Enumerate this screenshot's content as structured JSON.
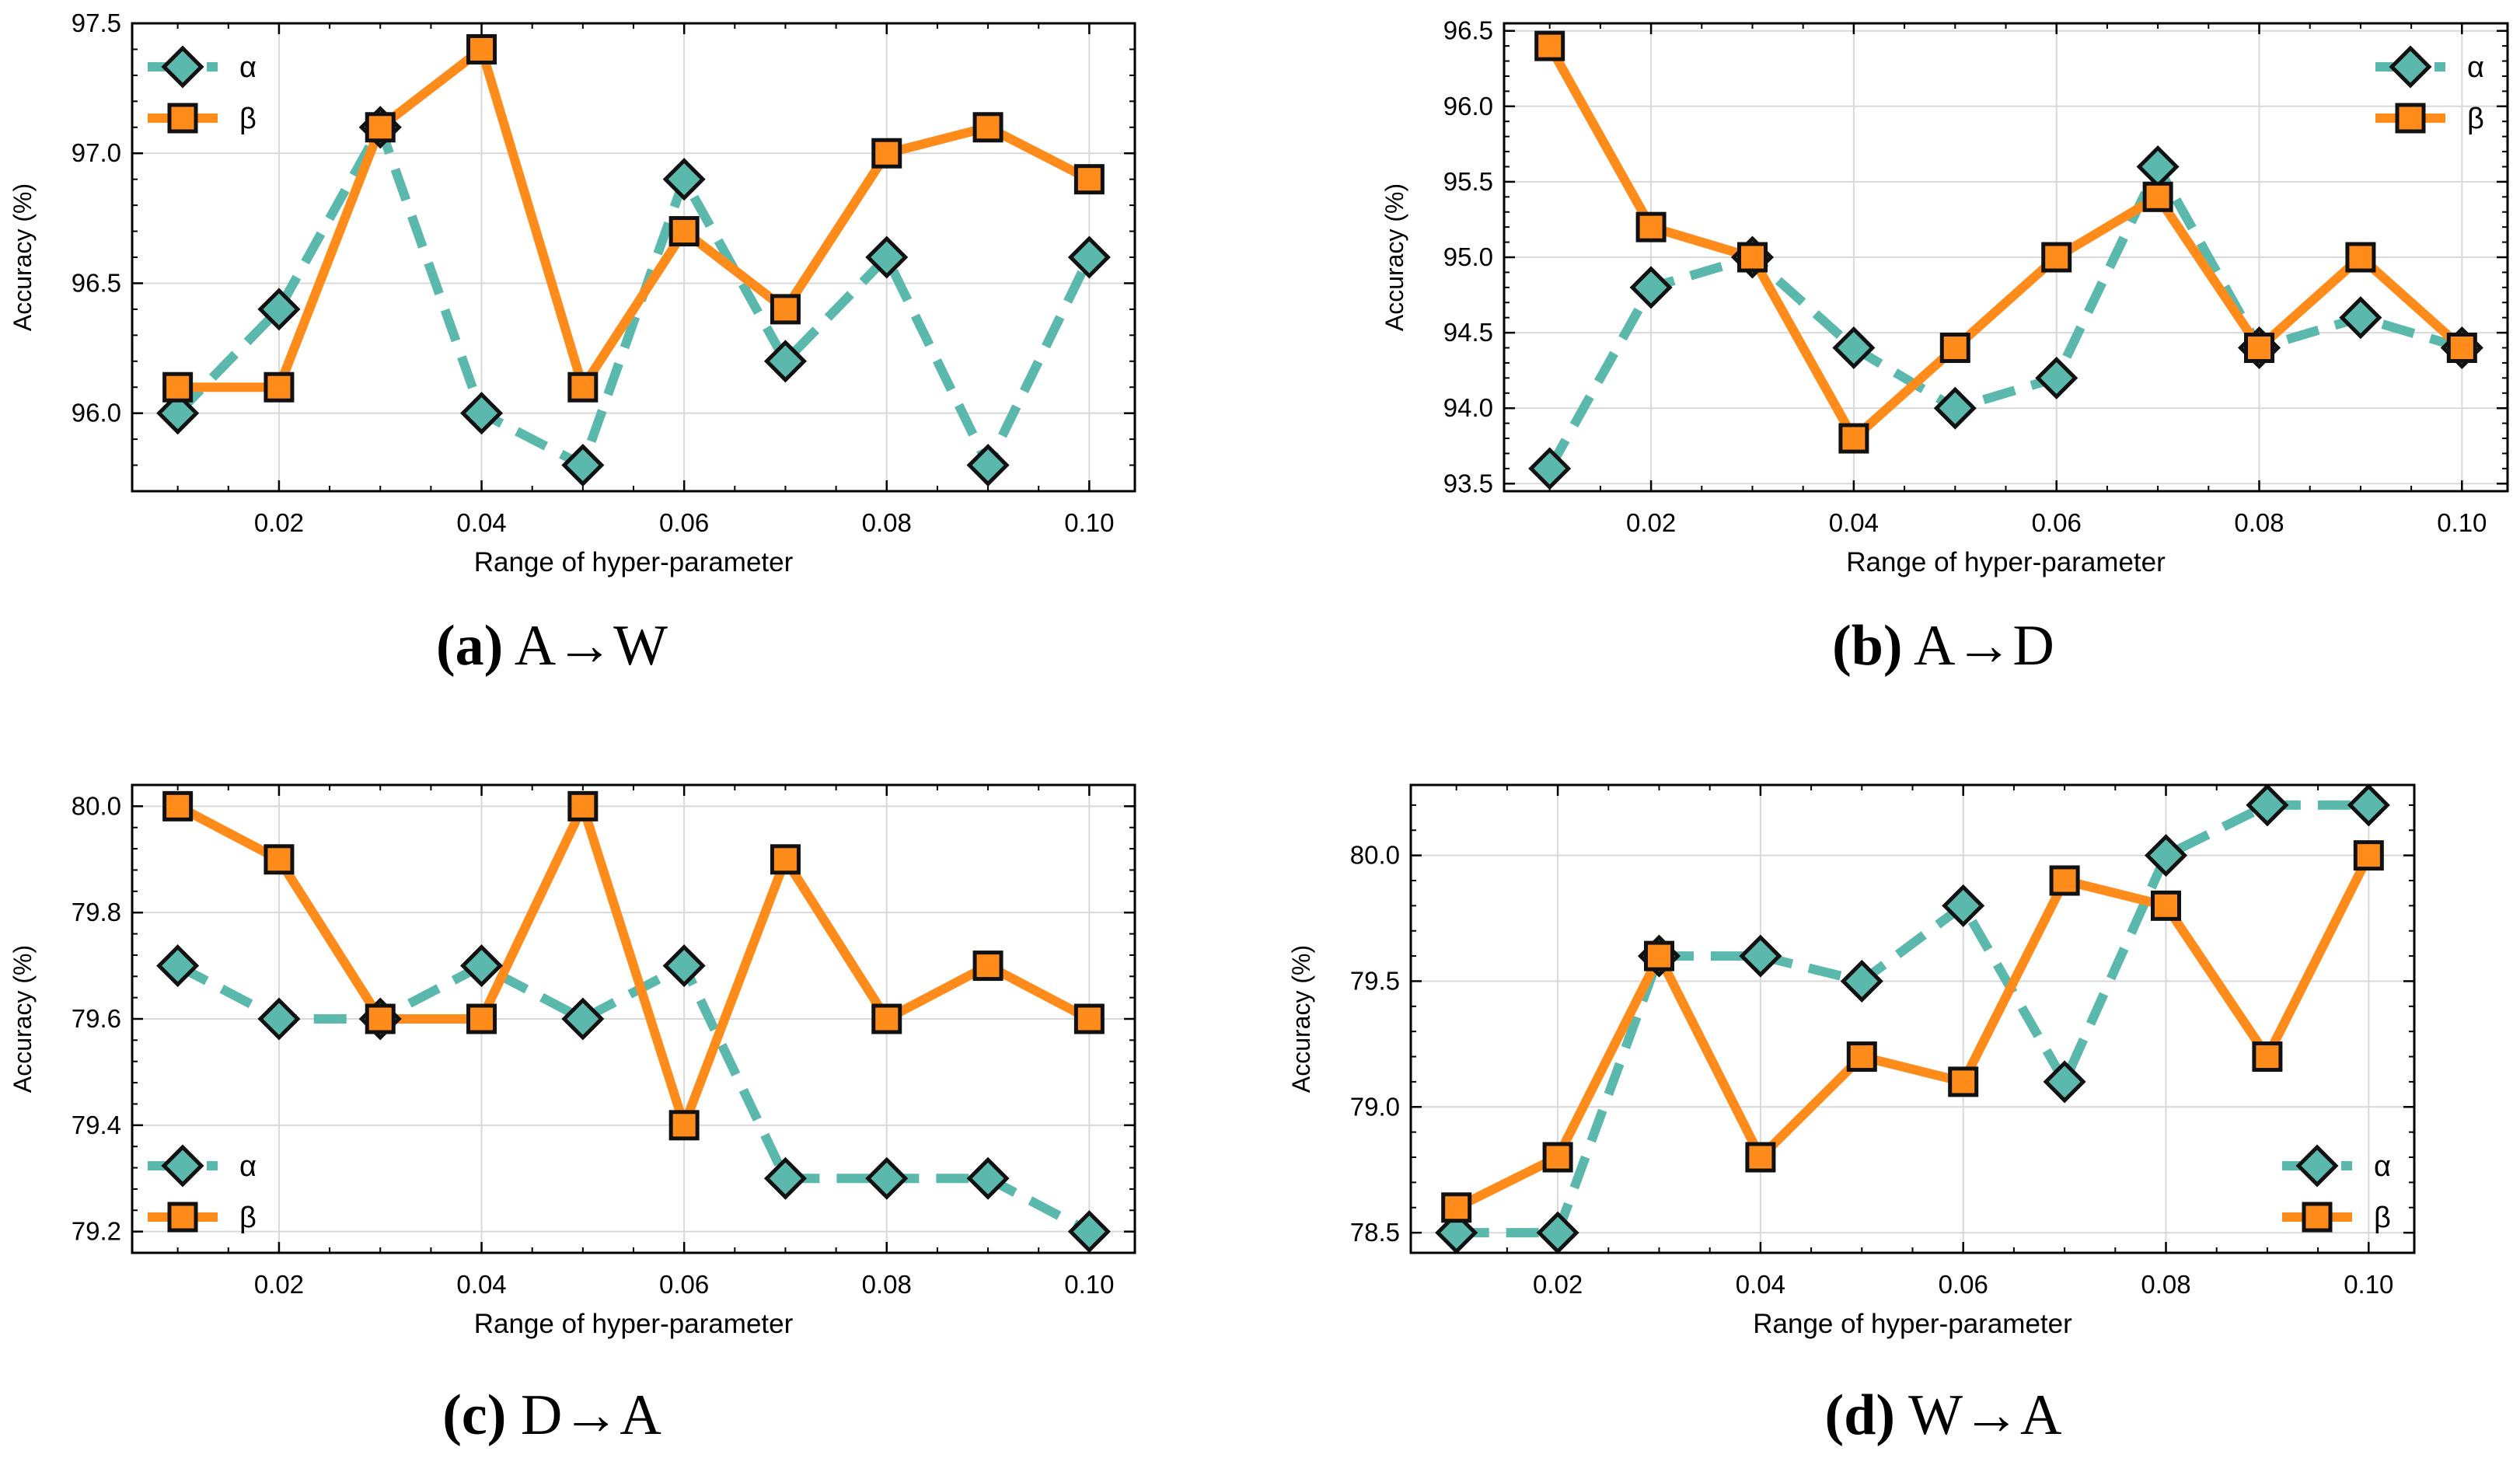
{
  "styles": {
    "alpha_color": "#5bb8ad",
    "beta_color": "#ff8c1a",
    "marker_edge": "#111111",
    "grid_color": "#d9d9d9",
    "axis_color": "#000000"
  },
  "chart_data": [
    {
      "id": "a",
      "type": "line",
      "caption_label": "(a)",
      "caption_text": "A→W",
      "xlabel": "Range of hyper-parameter",
      "ylabel": "Accuracy (%)",
      "x": [
        0.01,
        0.02,
        0.03,
        0.04,
        0.05,
        0.06,
        0.07,
        0.08,
        0.09,
        0.1
      ],
      "xticks": [
        0.02,
        0.04,
        0.06,
        0.08,
        0.1
      ],
      "xtick_labels": [
        "0.02",
        "0.04",
        "0.06",
        "0.08",
        "0.10"
      ],
      "xlim": [
        0.0055,
        0.1045
      ],
      "ylim": [
        95.7,
        97.5
      ],
      "yticks": [
        96.0,
        96.5,
        97.0,
        97.5
      ],
      "ytick_labels": [
        "96.0",
        "96.5",
        "97.0",
        "97.5"
      ],
      "legend_position": "top-left",
      "series": [
        {
          "name": "α",
          "key": "alpha",
          "values": [
            96.0,
            96.4,
            97.1,
            96.0,
            95.8,
            96.9,
            96.2,
            96.6,
            95.8,
            96.6
          ]
        },
        {
          "name": "β",
          "key": "beta",
          "values": [
            96.1,
            96.1,
            97.1,
            97.4,
            96.1,
            96.7,
            96.4,
            97.0,
            97.1,
            96.9
          ]
        }
      ]
    },
    {
      "id": "b",
      "type": "line",
      "caption_label": "(b)",
      "caption_text": "A→D",
      "xlabel": "Range of hyper-parameter",
      "ylabel": "Accuracy (%)",
      "x": [
        0.01,
        0.02,
        0.03,
        0.04,
        0.05,
        0.06,
        0.07,
        0.08,
        0.09,
        0.1
      ],
      "xticks": [
        0.02,
        0.04,
        0.06,
        0.08,
        0.1
      ],
      "xtick_labels": [
        "0.02",
        "0.04",
        "0.06",
        "0.08",
        "0.10"
      ],
      "xlim": [
        0.0055,
        0.1045
      ],
      "ylim": [
        93.45,
        96.55
      ],
      "yticks": [
        93.5,
        94.0,
        94.5,
        95.0,
        95.5,
        96.0,
        96.5
      ],
      "ytick_labels": [
        "93.5",
        "94.0",
        "94.5",
        "95.0",
        "95.5",
        "96.0",
        "96.5"
      ],
      "legend_position": "top-right",
      "series": [
        {
          "name": "α",
          "key": "alpha",
          "values": [
            93.6,
            94.8,
            95.0,
            94.4,
            94.0,
            94.2,
            95.6,
            94.4,
            94.6,
            94.4
          ]
        },
        {
          "name": "β",
          "key": "beta",
          "values": [
            96.4,
            95.2,
            95.0,
            93.8,
            94.4,
            95.0,
            95.4,
            94.4,
            95.0,
            94.4
          ]
        }
      ]
    },
    {
      "id": "c",
      "type": "line",
      "caption_label": "(c)",
      "caption_text": "D→A",
      "xlabel": "Range of hyper-parameter",
      "ylabel": "Accuracy (%)",
      "x": [
        0.01,
        0.02,
        0.03,
        0.04,
        0.05,
        0.06,
        0.07,
        0.08,
        0.09,
        0.1
      ],
      "xticks": [
        0.02,
        0.04,
        0.06,
        0.08,
        0.1
      ],
      "xtick_labels": [
        "0.02",
        "0.04",
        "0.06",
        "0.08",
        "0.10"
      ],
      "xlim": [
        0.0055,
        0.1045
      ],
      "ylim": [
        79.16,
        80.04
      ],
      "yticks": [
        79.2,
        79.4,
        79.6,
        79.8,
        80.0
      ],
      "ytick_labels": [
        "79.2",
        "79.4",
        "79.6",
        "79.8",
        "80.0"
      ],
      "legend_position": "bottom-left",
      "series": [
        {
          "name": "α",
          "key": "alpha",
          "values": [
            79.7,
            79.6,
            79.6,
            79.7,
            79.6,
            79.7,
            79.3,
            79.3,
            79.3,
            79.2
          ]
        },
        {
          "name": "β",
          "key": "beta",
          "values": [
            80.0,
            79.9,
            79.6,
            79.6,
            80.0,
            79.4,
            79.9,
            79.6,
            79.7,
            79.6
          ]
        }
      ]
    },
    {
      "id": "d",
      "type": "line",
      "caption_label": "(d)",
      "caption_text": "W→A",
      "xlabel": "Range of hyper-parameter",
      "ylabel": "Accuracy (%)",
      "x": [
        0.01,
        0.02,
        0.03,
        0.04,
        0.05,
        0.06,
        0.07,
        0.08,
        0.09,
        0.1
      ],
      "xticks": [
        0.02,
        0.04,
        0.06,
        0.08,
        0.1
      ],
      "xtick_labels": [
        "0.02",
        "0.04",
        "0.06",
        "0.08",
        "0.10"
      ],
      "xlim": [
        0.0055,
        0.1045
      ],
      "ylim": [
        78.42,
        80.28
      ],
      "yticks": [
        78.5,
        79.0,
        79.5,
        80.0
      ],
      "ytick_labels": [
        "78.5",
        "79.0",
        "79.5",
        "80.0"
      ],
      "legend_position": "bottom-right",
      "series": [
        {
          "name": "α",
          "key": "alpha",
          "values": [
            78.5,
            78.5,
            79.6,
            79.6,
            79.5,
            79.8,
            79.1,
            80.0,
            80.2,
            80.2
          ]
        },
        {
          "name": "β",
          "key": "beta",
          "values": [
            78.6,
            78.8,
            79.6,
            78.8,
            79.2,
            79.1,
            79.9,
            79.8,
            79.2,
            80.0
          ]
        }
      ]
    }
  ]
}
